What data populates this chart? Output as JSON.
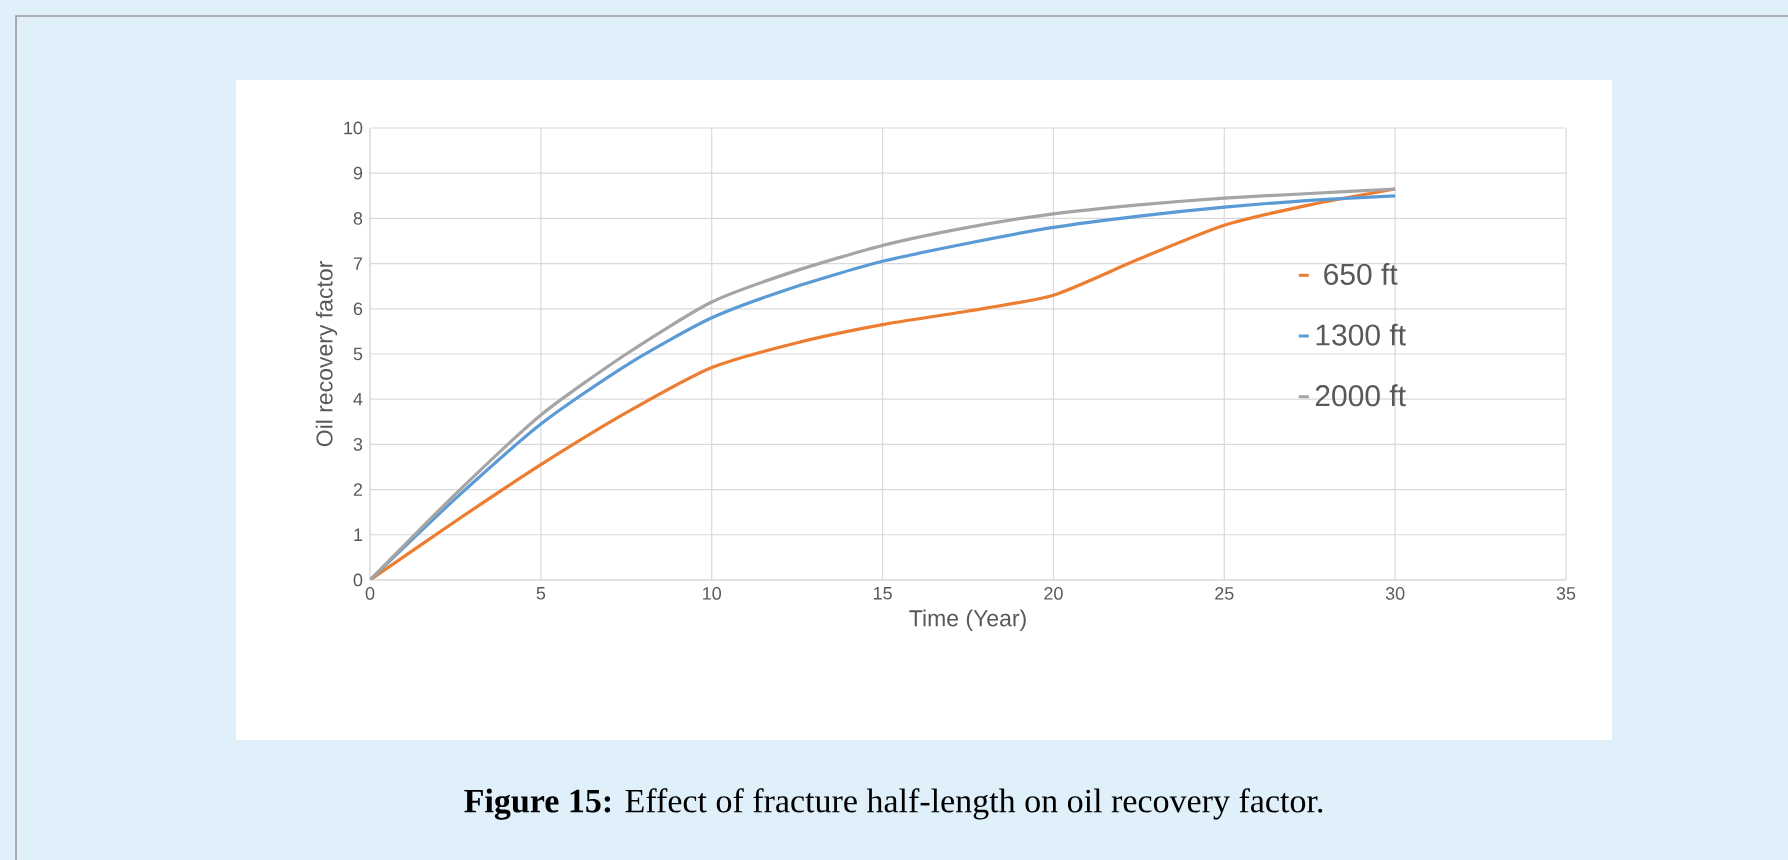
{
  "chart_data": {
    "type": "line",
    "xlabel": "Time (Year)",
    "ylabel": "Oil recovery factor",
    "x": [
      0,
      2.5,
      5,
      7.5,
      10,
      12.5,
      15,
      17.5,
      20,
      22.5,
      25,
      27.5,
      30
    ],
    "series": [
      {
        "name": "650 ft",
        "color": "#ed7d31",
        "values": [
          0,
          1.3,
          2.55,
          3.7,
          4.7,
          5.25,
          5.65,
          5.95,
          6.3,
          7.1,
          7.85,
          8.3,
          8.65
        ]
      },
      {
        "name": "1300 ft",
        "color": "#5b9bd5",
        "values": [
          0,
          1.8,
          3.45,
          4.75,
          5.8,
          6.5,
          7.05,
          7.45,
          7.8,
          8.05,
          8.25,
          8.4,
          8.5
        ]
      },
      {
        "name": "2000 ft",
        "color": "#a5a5a5",
        "values": [
          0,
          1.9,
          3.65,
          5.0,
          6.15,
          6.85,
          7.4,
          7.8,
          8.1,
          8.3,
          8.45,
          8.55,
          8.65
        ]
      }
    ],
    "xlim": [
      0,
      35
    ],
    "xticks": [
      0,
      5,
      10,
      15,
      20,
      25,
      30,
      35
    ],
    "ylim": [
      0,
      10
    ],
    "yticks": [
      0,
      1,
      2,
      3,
      4,
      5,
      6,
      7,
      8,
      9,
      10
    ],
    "grid": true,
    "legend": "right",
    "marker": "none",
    "line_style": "solid",
    "annotations": [
      "**Figure 15:** Effect of fracture half-length on oil recovery factor."
    ]
  }
}
